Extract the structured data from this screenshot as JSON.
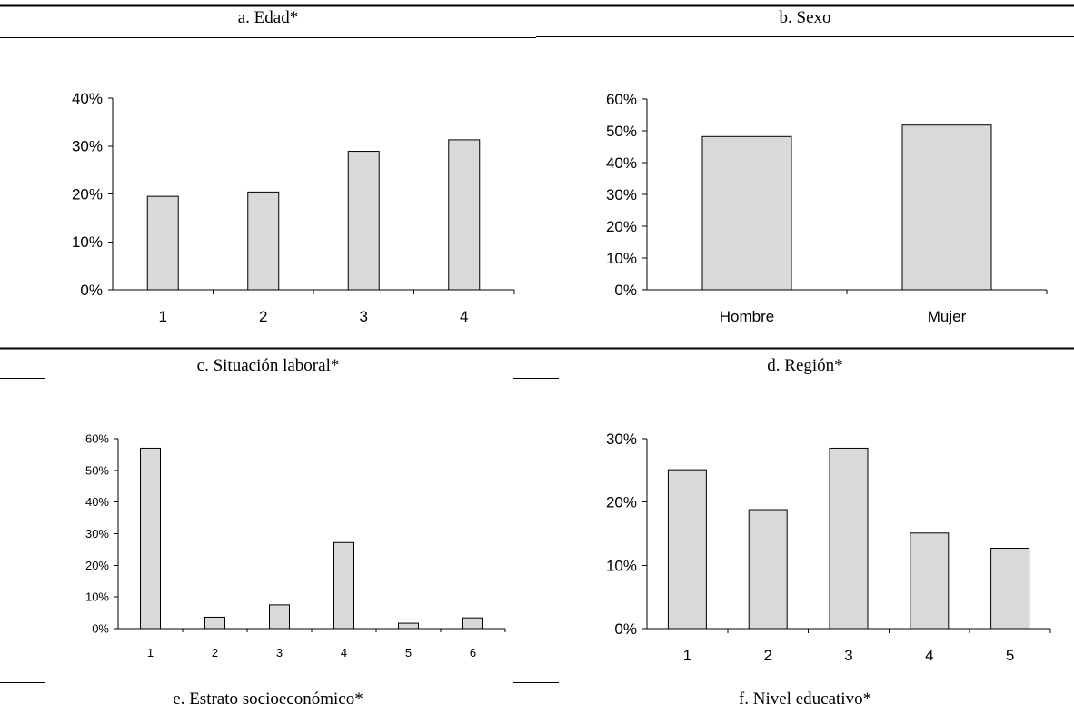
{
  "panel_titles": {
    "a": "a. Edad*",
    "b": "b. Sexo",
    "c": "c. Situación laboral*",
    "d": "d. Región*",
    "e": "e. Estrato socioeconómico*",
    "f": "f. Nivel educativo*"
  },
  "chart_data": [
    {
      "id": "a",
      "type": "bar",
      "title": "a. Edad*",
      "categories": [
        "1",
        "2",
        "3",
        "4"
      ],
      "values": [
        19.5,
        20.4,
        28.9,
        31.3
      ],
      "y_unit": "%",
      "yticks": [
        "0%",
        "10%",
        "20%",
        "30%",
        "40%"
      ],
      "ylim": [
        0,
        40
      ],
      "grid": false,
      "bar_color": "#d9d9d9"
    },
    {
      "id": "b",
      "type": "bar",
      "title": "b. Sexo",
      "categories": [
        "Hombre",
        "Mujer"
      ],
      "values": [
        48.2,
        51.8
      ],
      "y_unit": "%",
      "yticks": [
        "0%",
        "10%",
        "20%",
        "30%",
        "40%",
        "50%",
        "60%"
      ],
      "ylim": [
        0,
        60
      ],
      "grid": false,
      "bar_color": "#d9d9d9"
    },
    {
      "id": "e",
      "type": "bar",
      "title": "e. Estrato socioeconómico*",
      "categories": [
        "1",
        "2",
        "3",
        "4",
        "5",
        "6"
      ],
      "values": [
        57.0,
        3.6,
        7.5,
        27.2,
        1.7,
        3.4
      ],
      "y_unit": "%",
      "yticks": [
        "0%",
        "10%",
        "20%",
        "30%",
        "40%",
        "50%",
        "60%"
      ],
      "ylim": [
        0,
        60
      ],
      "grid": false,
      "bar_color": "#d9d9d9"
    },
    {
      "id": "f",
      "type": "bar",
      "title": "f. Nivel educativo*",
      "categories": [
        "1",
        "2",
        "3",
        "4",
        "5"
      ],
      "values": [
        25.1,
        18.8,
        28.5,
        15.1,
        12.7
      ],
      "y_unit": "%",
      "yticks": [
        "0%",
        "10%",
        "20%",
        "30%"
      ],
      "ylim": [
        0,
        30
      ],
      "grid": false,
      "bar_color": "#d9d9d9"
    }
  ]
}
